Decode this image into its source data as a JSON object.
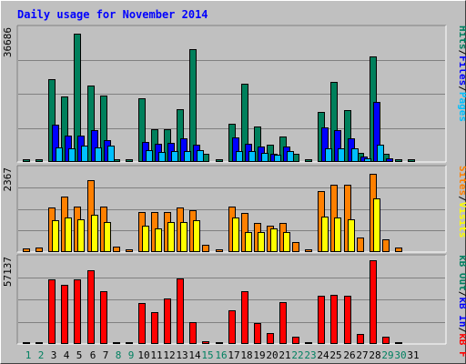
{
  "chart_data": {
    "type": "bar",
    "title": "Daily usage for November 2014",
    "categories": [
      "1",
      "2",
      "3",
      "4",
      "5",
      "6",
      "7",
      "8",
      "9",
      "10",
      "11",
      "12",
      "13",
      "14",
      "15",
      "16",
      "17",
      "18",
      "19",
      "20",
      "21",
      "22",
      "23",
      "24",
      "25",
      "26",
      "27",
      "28",
      "29",
      "30",
      "31"
    ],
    "weekend_days": [
      "1",
      "2",
      "8",
      "9",
      "15",
      "16",
      "22",
      "23",
      "29",
      "30"
    ],
    "panels": [
      {
        "name": "hits_files_pages",
        "max_label": "36686",
        "ymax": 36686,
        "right_labels": [
          {
            "text": "Pages",
            "color": "#00c0ff"
          },
          {
            "text": "Files",
            "color": "#0000ff"
          },
          {
            "text": "Hits",
            "color": "#008060"
          }
        ],
        "series": [
          {
            "name": "Hits",
            "color": "#00805c",
            "values": [
              650,
              650,
              23200,
              18400,
              36000,
              21400,
              18700,
              650,
              650,
              17800,
              9200,
              9200,
              14800,
              31600,
              2400,
              650,
              10700,
              21800,
              9900,
              4800,
              7200,
              2200,
              650,
              14000,
              22300,
              14400,
              2600,
              29600,
              2400,
              650,
              650
            ]
          },
          {
            "name": "Files",
            "color": "#0000ff",
            "values": [
              0,
              0,
              10400,
              7400,
              7400,
              9000,
              6100,
              0,
              0,
              5600,
              5000,
              5300,
              6700,
              4800,
              0,
              0,
              7000,
              5200,
              4400,
              2400,
              4400,
              0,
              0,
              9700,
              9000,
              6600,
              1500,
              16800,
              1100,
              0,
              0
            ]
          },
          {
            "name": "Pages",
            "color": "#00c0ff",
            "values": [
              0,
              0,
              4000,
              3700,
              4600,
              4100,
              4700,
              0,
              0,
              3300,
              2700,
              3000,
              3000,
              3300,
              0,
              0,
              3000,
              3000,
              2500,
              2000,
              3000,
              0,
              0,
              3700,
              3900,
              3700,
              1100,
              4800,
              0,
              0,
              0
            ]
          }
        ]
      },
      {
        "name": "visits_sites",
        "max_label": "2367",
        "ymax": 2367,
        "right_labels": [
          {
            "text": "Visits",
            "color": "#ffff00"
          },
          {
            "text": "Sites",
            "color": "#ff8000"
          }
        ],
        "series": [
          {
            "name": "Sites",
            "color": "#ff8000",
            "values": [
              110,
              140,
              1290,
              1610,
              1320,
              2110,
              1320,
              160,
              90,
              1180,
              1180,
              1180,
              1300,
              1230,
              220,
              90,
              1320,
              1140,
              860,
              780,
              840,
              290,
              90,
              1770,
              1970,
              1970,
              430,
              2300,
              370,
              120,
              0
            ]
          },
          {
            "name": "Visits",
            "color": "#ffff00",
            "values": [
              0,
              0,
              930,
              1000,
              970,
              1080,
              890,
              0,
              0,
              760,
              680,
              880,
              880,
              930,
              0,
              0,
              1000,
              580,
              580,
              680,
              580,
              0,
              0,
              1030,
              1000,
              960,
              0,
              1560,
              0,
              0,
              0
            ]
          }
        ]
      },
      {
        "name": "kbytes",
        "max_label": "57137",
        "ymax": 57137,
        "right_labels": [
          {
            "text": "kB F",
            "color": "#ff0000"
          },
          {
            "text": "kB In",
            "color": "#0000ff"
          },
          {
            "text": "kB Out",
            "color": "#008060"
          }
        ],
        "series": [
          {
            "name": "kB F",
            "color": "#ff0000",
            "values": [
              1000,
              1000,
              44000,
              40300,
              44000,
              50400,
              36300,
              1000,
              1000,
              27700,
              21800,
              31000,
              44600,
              14900,
              2000,
              1000,
              23200,
              36300,
              14000,
              7600,
              28700,
              4700,
              1000,
              33200,
              33800,
              33200,
              7000,
              57000,
              4700,
              1000,
              0
            ]
          }
        ]
      }
    ]
  }
}
